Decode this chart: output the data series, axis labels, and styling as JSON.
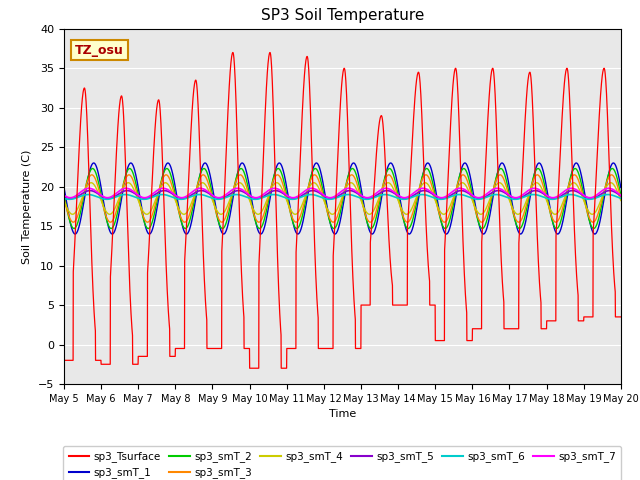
{
  "title": "SP3 Soil Temperature",
  "ylabel": "Soil Temperature (C)",
  "xlabel": "Time",
  "ylim": [
    -5,
    40
  ],
  "xlim": [
    0,
    15
  ],
  "annotation": "TZ_osu",
  "x_tick_labels": [
    "May 5",
    "May 6",
    "May 7",
    "May 8",
    "May 9",
    "May 10",
    "May 11",
    "May 12",
    "May 13",
    "May 14",
    "May 15",
    "May 16",
    "May 17",
    "May 18",
    "May 19",
    "May 20"
  ],
  "series_colors": {
    "sp3_Tsurface": "#ff0000",
    "sp3_smT_1": "#0000cc",
    "sp3_smT_2": "#00cc00",
    "sp3_smT_3": "#ff8800",
    "sp3_smT_4": "#cccc00",
    "sp3_smT_5": "#8800cc",
    "sp3_smT_6": "#00cccc",
    "sp3_smT_7": "#ff00ff"
  },
  "plot_bg_color": "#e8e8e8",
  "grid_color": "#ffffff",
  "surface_day_peaks": [
    0.55,
    1.5,
    2.5,
    3.5,
    4.5,
    5.5,
    6.5,
    7.5,
    8.5,
    9.5,
    10.5,
    11.5,
    12.5,
    13.5,
    14.5
  ],
  "surface_peak_heights": [
    32.5,
    31.5,
    31.0,
    33.5,
    37.0,
    37.0,
    36.5,
    35.0,
    29.0,
    34.5,
    35.0,
    35.0,
    34.5,
    35.0,
    35.0
  ],
  "surface_night_lows": [
    -2.0,
    -2.5,
    -1.5,
    -0.5,
    -0.5,
    -3.0,
    -0.5,
    -0.5,
    5.0,
    5.0,
    0.5,
    2.0,
    2.0,
    3.0,
    3.5
  ],
  "depth_base": 18.5,
  "depth_amp_1": 4.5,
  "depth_amp_2": 3.8,
  "depth_amp_3": 3.0,
  "depth_amp_4": 2.0,
  "depth_amp_5": 0.5,
  "depth_amp_6": 0.3,
  "depth_amp_7": 0.6
}
